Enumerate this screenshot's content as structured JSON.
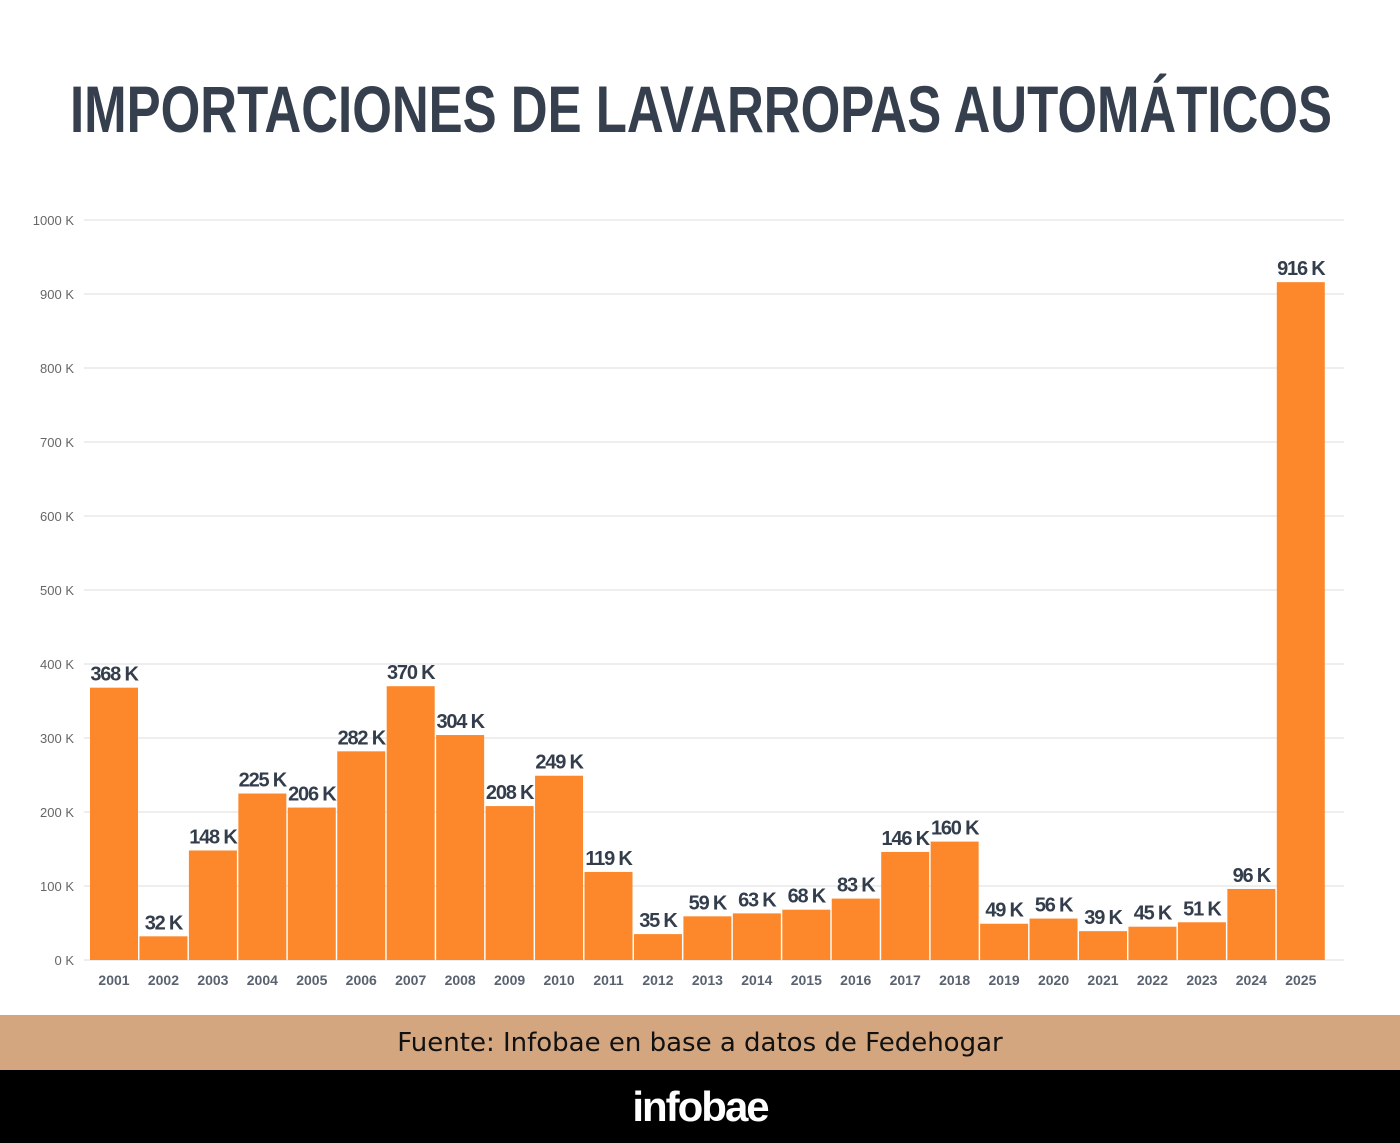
{
  "chart_data": {
    "type": "bar",
    "title": "IMPORTACIONES DE LAVARROPAS AUTOMÁTICOS",
    "categories": [
      "2001",
      "2002",
      "2003",
      "2004",
      "2005",
      "2006",
      "2007",
      "2008",
      "2009",
      "2010",
      "2011",
      "2012",
      "2013",
      "2014",
      "2015",
      "2016",
      "2017",
      "2018",
      "2019",
      "2020",
      "2021",
      "2022",
      "2023",
      "2024",
      "2025"
    ],
    "values": [
      368,
      32,
      148,
      225,
      206,
      282,
      370,
      304,
      208,
      249,
      119,
      35,
      59,
      63,
      68,
      83,
      146,
      160,
      49,
      56,
      39,
      45,
      51,
      96,
      916
    ],
    "data_labels": [
      "368 K",
      "32 K",
      "148 K",
      "225 K",
      "206 K",
      "282 K",
      "370 K",
      "304 K",
      "208 K",
      "249 K",
      "119 K",
      "35 K",
      "59 K",
      "63 K",
      "68 K",
      "83 K",
      "146 K",
      "160 K",
      "49 K",
      "56 K",
      "39 K",
      "45 K",
      "51 K",
      "96 K",
      "916 K"
    ],
    "unit": "K",
    "ylim": [
      0,
      1000
    ],
    "yticks": [
      "0 K",
      "100 K",
      "200 K",
      "300 K",
      "400 K",
      "500 K",
      "600 K",
      "700 K",
      "800 K",
      "900 K",
      "1000 K"
    ],
    "xlabel": "",
    "ylabel": "",
    "grid": true,
    "bar_color": "#fd882b",
    "label_color": "#333d4c"
  },
  "footer": {
    "source": "Fuente: Infobae en base a datos de Fedehogar",
    "logo": "infobae",
    "source_bg": "#d3a67f"
  }
}
